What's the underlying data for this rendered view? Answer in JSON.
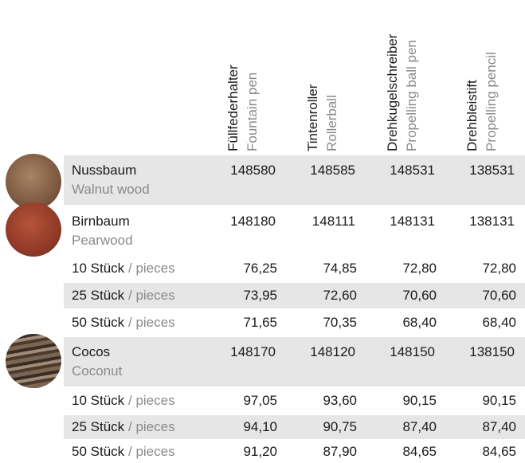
{
  "header": {
    "columns": [
      {
        "de": "Füllfederhalter",
        "en": "Fountain pen"
      },
      {
        "de": "Tintenroller",
        "en": "Rollerball"
      },
      {
        "de": "Drehkugelschreiber",
        "en": "Propelling ball pen"
      },
      {
        "de": "Drehbleistift",
        "en": "Propelling pencil"
      }
    ]
  },
  "table": {
    "rows": [
      {
        "name": "Nussbaum",
        "subname": "Walnut wood",
        "cells": [
          "148580",
          "148585",
          "148531",
          "138531"
        ]
      },
      {
        "name": "Birnbaum",
        "subname": "Pearwood",
        "cells": [
          "148180",
          "148111",
          "148131",
          "138131"
        ]
      },
      {
        "quantity": "10 Stück",
        "unit": "/ pieces",
        "cells": [
          "76,25",
          "74,85",
          "72,80",
          "72,80"
        ]
      },
      {
        "quantity": "25 Stück",
        "unit": "/ pieces",
        "cells": [
          "73,95",
          "72,60",
          "70,60",
          "70,60"
        ]
      },
      {
        "quantity": "50 Stück",
        "unit": "/ pieces",
        "cells": [
          "71,65",
          "70,35",
          "68,40",
          "68,40"
        ]
      },
      {
        "name": "Cocos",
        "subname": "Coconut",
        "cells": [
          "148170",
          "148120",
          "148150",
          "138150"
        ]
      },
      {
        "quantity": "10 Stück",
        "unit": "/ pieces",
        "cells": [
          "97,05",
          "93,60",
          "90,15",
          "90,15"
        ]
      },
      {
        "quantity": "25 Stück",
        "unit": "/ pieces",
        "cells": [
          "94,10",
          "90,75",
          "87,40",
          "87,40"
        ]
      },
      {
        "quantity": "50 Stück",
        "unit": "/ pieces",
        "cells": [
          "91,20",
          "87,90",
          "84,65",
          "84,65"
        ]
      }
    ]
  }
}
